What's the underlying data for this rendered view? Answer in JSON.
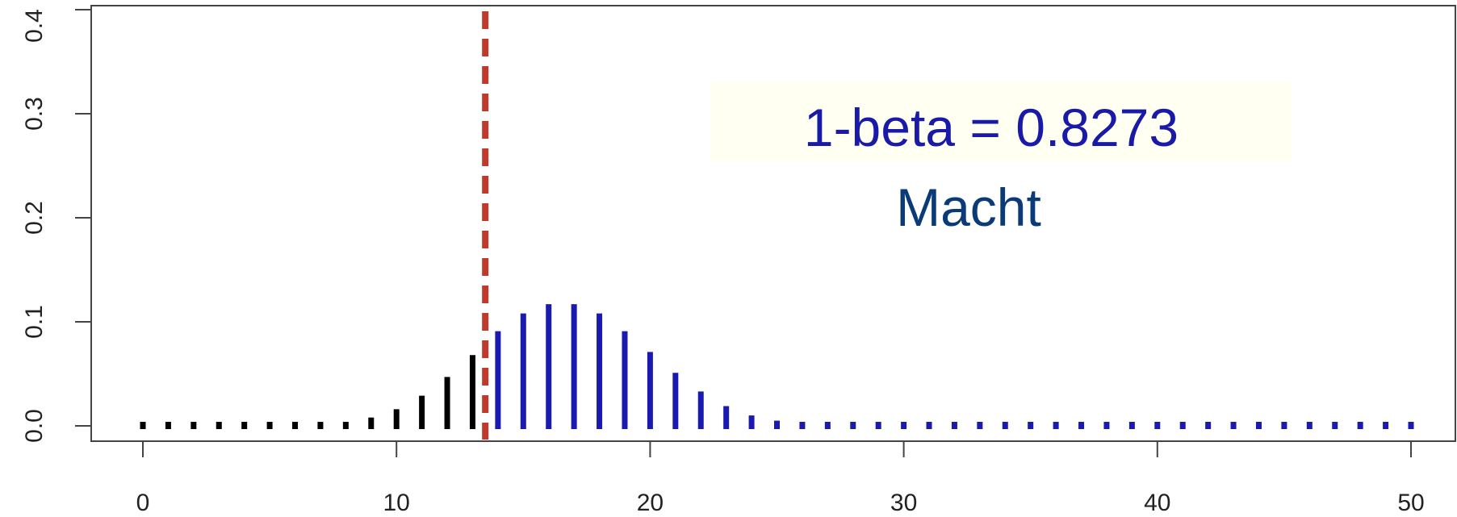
{
  "chart_data": {
    "type": "bar",
    "style": "lollipop-lines",
    "x": [
      0,
      1,
      2,
      3,
      4,
      5,
      6,
      7,
      8,
      9,
      10,
      11,
      12,
      13,
      14,
      15,
      16,
      17,
      18,
      19,
      20,
      21,
      22,
      23,
      24,
      25,
      26,
      27,
      28,
      29,
      30,
      31,
      32,
      33,
      34,
      35,
      36,
      37,
      38,
      39,
      40,
      41,
      42,
      43,
      44,
      45,
      46,
      47,
      48,
      49,
      50
    ],
    "values": [
      0,
      0,
      0,
      0,
      0,
      0,
      0,
      0.0005,
      0.003,
      0.008,
      0.016,
      0.029,
      0.047,
      0.068,
      0.091,
      0.108,
      0.117,
      0.117,
      0.108,
      0.091,
      0.071,
      0.051,
      0.033,
      0.019,
      0.01,
      0.005,
      0.002,
      0.001,
      0.0004,
      0,
      0,
      0,
      0,
      0,
      0,
      0,
      0,
      0,
      0,
      0,
      0,
      0,
      0,
      0,
      0,
      0,
      0,
      0,
      0,
      0,
      0
    ],
    "critical_value": 13.5,
    "power_region_start": 14,
    "colors": {
      "below_critical": "#000000",
      "power_region": "#1a1ab0",
      "critical_line": "#c0392b"
    },
    "xlim": [
      0,
      50
    ],
    "ylim": [
      0,
      0.4
    ],
    "x_ticks": [
      0,
      10,
      20,
      30,
      40,
      50
    ],
    "y_ticks": [
      0.0,
      0.1,
      0.2,
      0.3,
      0.4
    ],
    "x_tick_labels": [
      "0",
      "10",
      "20",
      "30",
      "40",
      "50"
    ],
    "y_tick_labels": [
      "0.0",
      "0.1",
      "0.2",
      "0.3",
      "0.4"
    ],
    "annotations": {
      "power": "1-beta = 0.8273",
      "label": "Macht"
    },
    "title": "",
    "xlabel": "",
    "ylabel": ""
  }
}
